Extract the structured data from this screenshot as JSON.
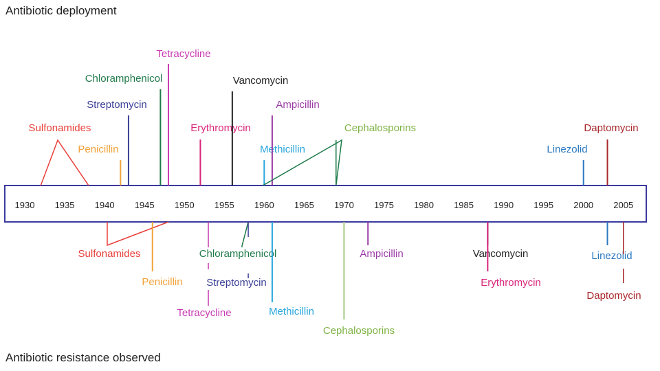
{
  "headings": {
    "top": "Antibiotic deployment",
    "bottom": "Antibiotic resistance observed"
  },
  "timeline": {
    "year_start": 1930,
    "year_end": 2005,
    "ticks": [
      "1930",
      "1935",
      "1940",
      "1945",
      "1950",
      "1955",
      "1960",
      "1965",
      "1970",
      "1975",
      "1980",
      "1985",
      "1990",
      "1995",
      "2000",
      "2005"
    ]
  },
  "deployment": [
    {
      "label": "Sulfonamides",
      "years": [
        1932,
        1938
      ],
      "color": "#e8403a"
    },
    {
      "label": "Penicillin",
      "years": [
        1942
      ],
      "color": "#f2a23a"
    },
    {
      "label": "Streptomycin",
      "years": [
        1943
      ],
      "color": "#3b3f96"
    },
    {
      "label": "Chloramphenicol",
      "years": [
        1947
      ],
      "color": "#1f7a4a"
    },
    {
      "label": "Tetracycline",
      "years": [
        1948
      ],
      "color": "#c93ab3"
    },
    {
      "label": "Erythromycin",
      "years": [
        1952
      ],
      "color": "#d8247a"
    },
    {
      "label": "Vancomycin",
      "years": [
        1956
      ],
      "color": "#222222"
    },
    {
      "label": "Methicillin",
      "years": [
        1960
      ],
      "color": "#29a6dc"
    },
    {
      "label": "Ampicillin",
      "years": [
        1961
      ],
      "color": "#9b3aa6"
    },
    {
      "label": "Cephalosporins",
      "years": [
        1960,
        1969
      ],
      "color": "#7fb344",
      "line_color": "#1f7a4a"
    },
    {
      "label": "Linezolid",
      "years": [
        2000
      ],
      "color": "#2a78c0"
    },
    {
      "label": "Daptomycin",
      "years": [
        2003
      ],
      "color": "#a8282c"
    }
  ],
  "resistance": [
    {
      "label": "Sulfonamides",
      "years": [
        1940,
        1948
      ],
      "color": "#e8403a"
    },
    {
      "label": "Penicillin",
      "years": [
        1946
      ],
      "color": "#f2a23a"
    },
    {
      "label": "Chloramphenicol",
      "years": [
        1958
      ],
      "color": "#1f7a4a"
    },
    {
      "label": "Streptomycin",
      "years": [
        1958
      ],
      "color": "#3b3f96"
    },
    {
      "label": "Tetracycline",
      "years": [
        1953
      ],
      "color": "#c93ab3"
    },
    {
      "label": "Methicillin",
      "years": [
        1961
      ],
      "color": "#29a6dc"
    },
    {
      "label": "Cephalosporins",
      "years": [
        1970
      ],
      "color": "#7fb344",
      "line_color": "#a8cc84"
    },
    {
      "label": "Ampicillin",
      "years": [
        1973
      ],
      "color": "#9b3aa6"
    },
    {
      "label": "Vancomycin",
      "years": [
        1988
      ],
      "color": "#222222"
    },
    {
      "label": "Erythromycin",
      "years": [
        1988
      ],
      "color": "#d8247a"
    },
    {
      "label": "Linezolid",
      "years": [
        2003
      ],
      "color": "#2a78c0"
    },
    {
      "label": "Daptomycin",
      "years": [
        2005
      ],
      "color": "#a8282c"
    }
  ]
}
